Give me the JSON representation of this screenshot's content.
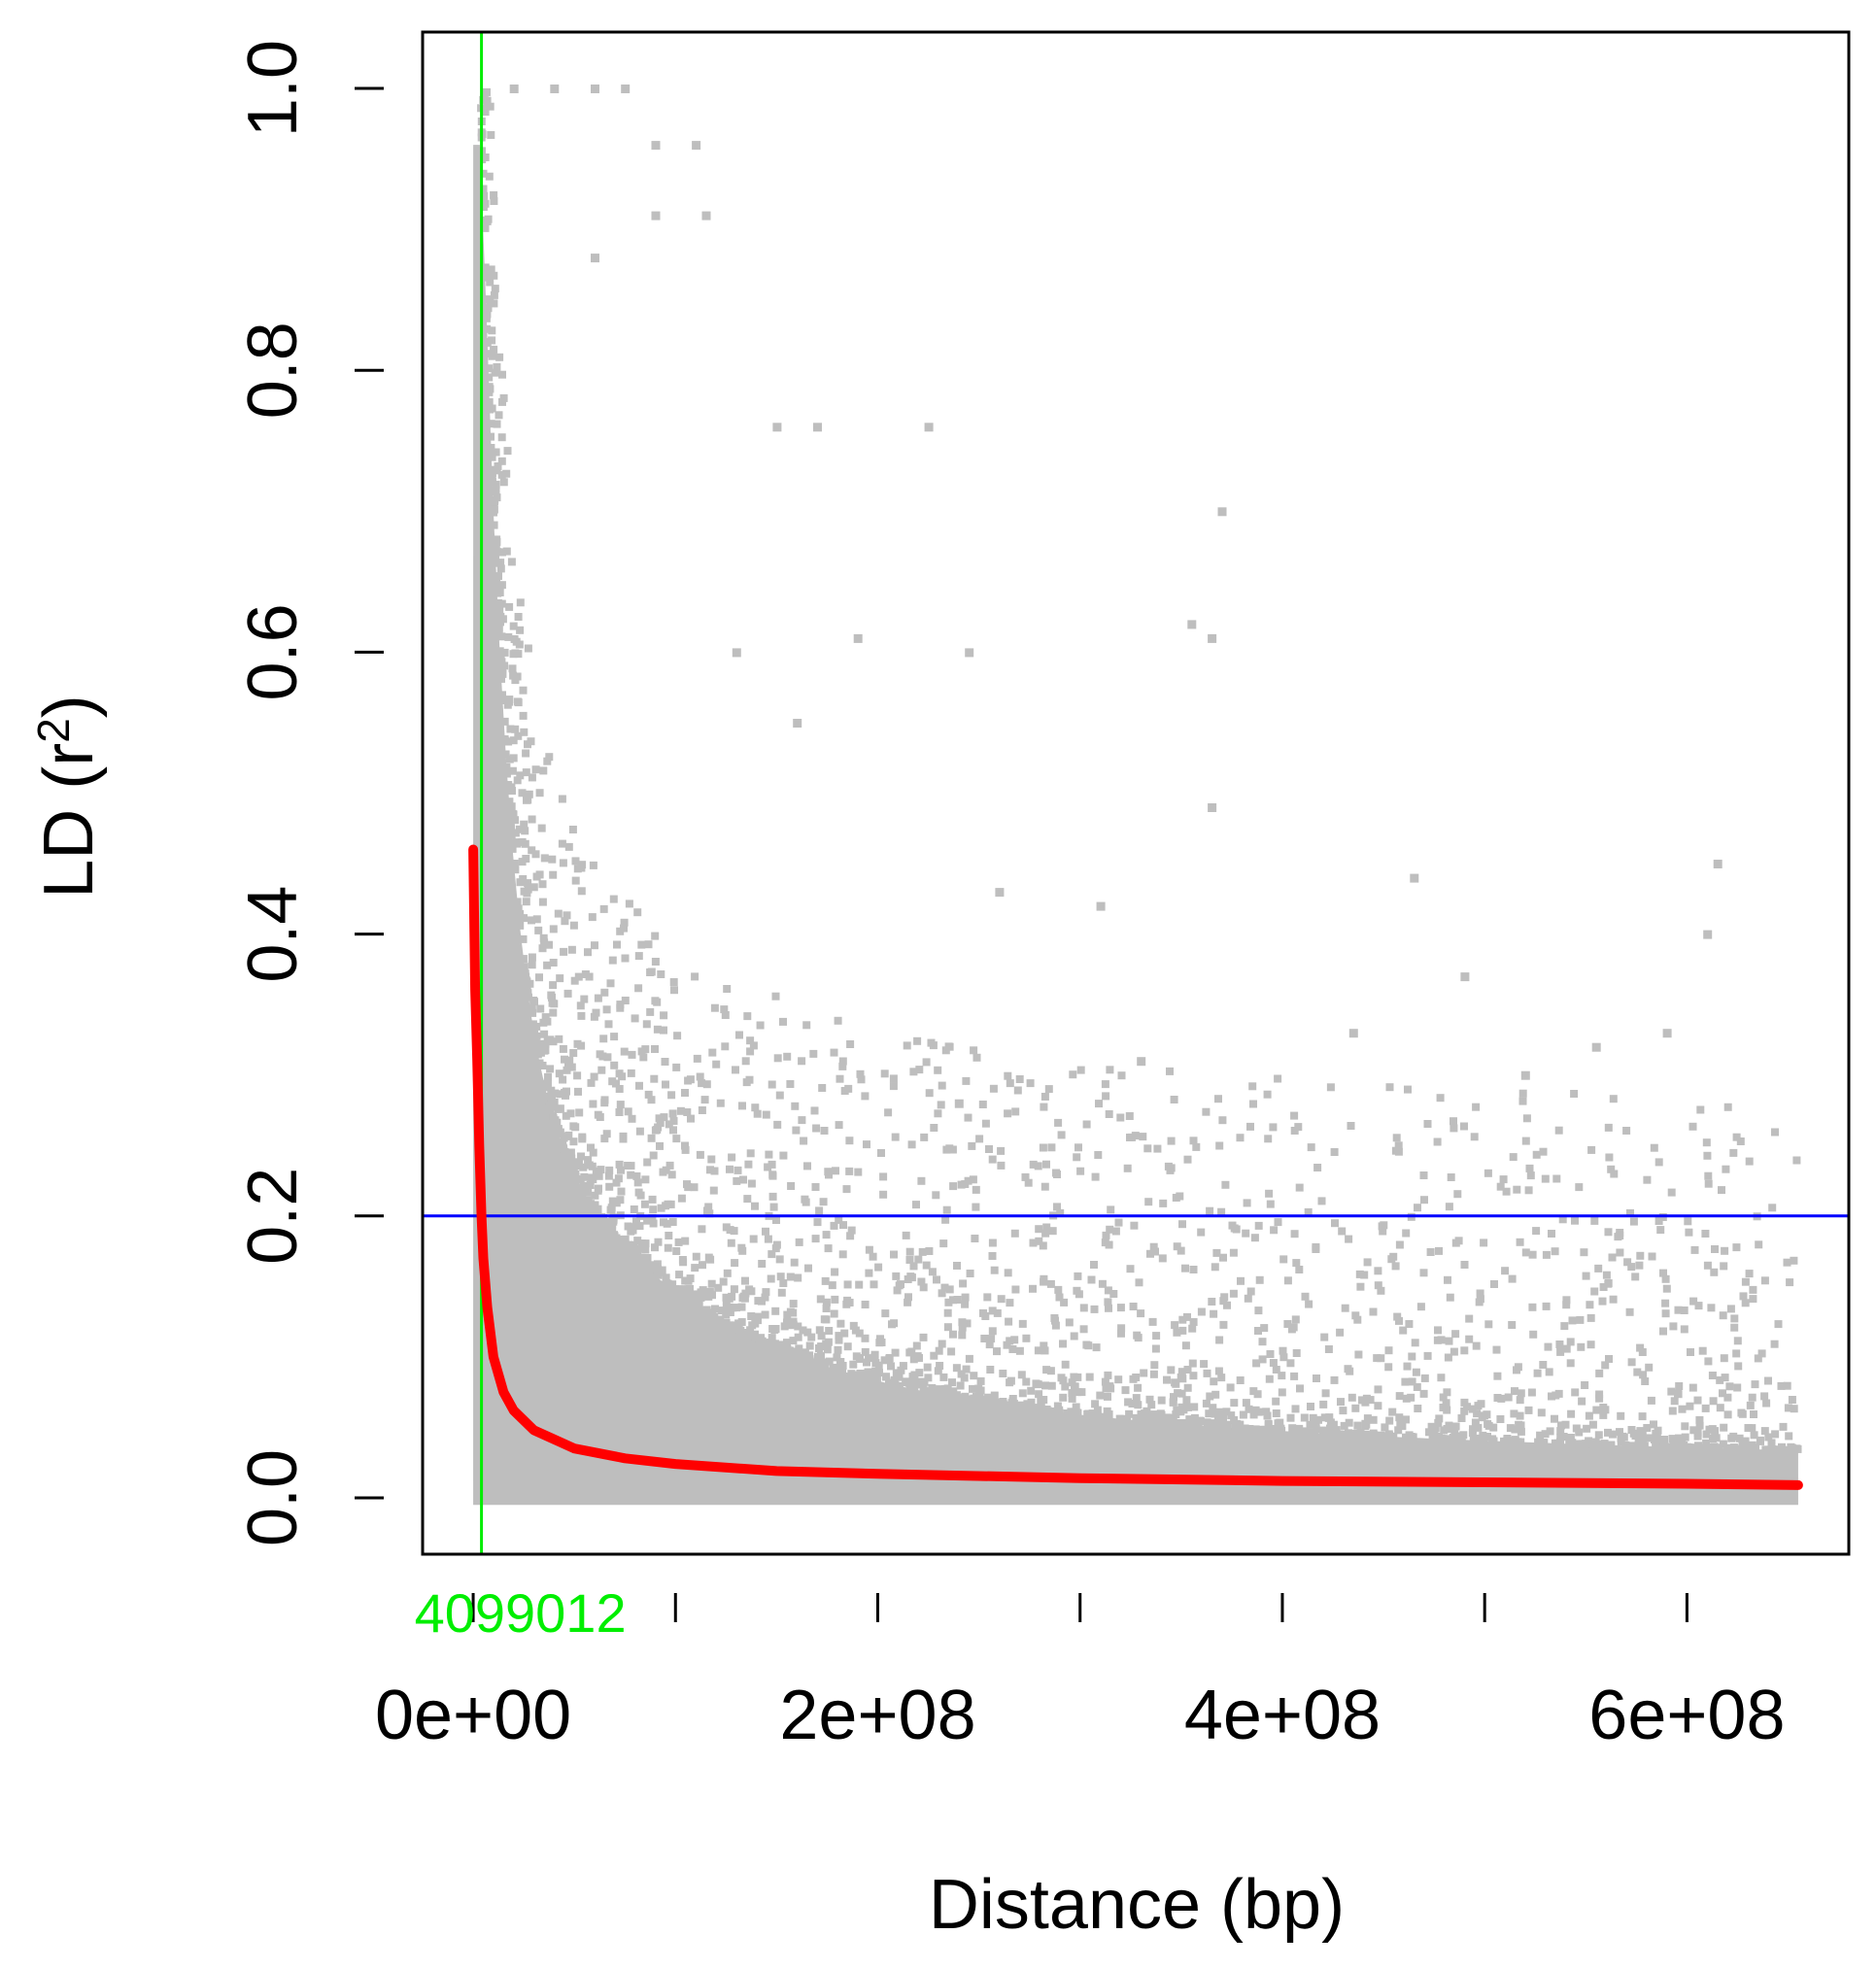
{
  "chart_data": {
    "type": "scatter",
    "title": "",
    "xlabel": "Distance (bp)",
    "ylabel_main": "LD (r",
    "ylabel_sup": "2",
    "ylabel_close": ")",
    "xlim": [
      -25000000,
      680000000
    ],
    "ylim": [
      -0.04,
      1.04
    ],
    "x_ticks": [
      0,
      100000000,
      200000000,
      300000000,
      400000000,
      500000000,
      600000000
    ],
    "x_tick_labels": [
      {
        "value": 0,
        "label": "0e+00"
      },
      {
        "value": 200000000,
        "label": "2e+08"
      },
      {
        "value": 400000000,
        "label": "4e+08"
      },
      {
        "value": 600000000,
        "label": "6e+08"
      }
    ],
    "y_ticks": [
      {
        "value": 0.0,
        "label": "0.0"
      },
      {
        "value": 0.2,
        "label": "0.2"
      },
      {
        "value": 0.4,
        "label": "0.4"
      },
      {
        "value": 0.6,
        "label": "0.6"
      },
      {
        "value": 0.8,
        "label": "0.8"
      },
      {
        "value": 1.0,
        "label": "1.0"
      }
    ],
    "grid": false,
    "legend": "none",
    "colors": {
      "points": "#bebebe",
      "curve": "#ff0000",
      "threshold": "#0000ff",
      "decay_marker": "#00ee00"
    },
    "threshold_line": {
      "y": 0.2
    },
    "decay_marker": {
      "x": 4099012,
      "label": "4099012"
    },
    "decay_curve": {
      "x": [
        0,
        1000000,
        2000000,
        3000000,
        4099012,
        5000000,
        7000000,
        10000000,
        15000000,
        20000000,
        30000000,
        50000000,
        75000000,
        100000000,
        150000000,
        200000000,
        300000000,
        400000000,
        500000000,
        600000000,
        655000000
      ],
      "y": [
        0.46,
        0.36,
        0.31,
        0.25,
        0.2,
        0.17,
        0.135,
        0.1,
        0.075,
        0.062,
        0.048,
        0.035,
        0.028,
        0.024,
        0.019,
        0.017,
        0.014,
        0.012,
        0.011,
        0.01,
        0.009
      ]
    },
    "points_summary": "dense cloud of pairwise r2 values from 0 to 1 over 0 to 6.55e+08 bp, concentrated below 0.2 and near zero distance",
    "sample_points": [
      {
        "x": 20000000,
        "y": 1.0
      },
      {
        "x": 40000000,
        "y": 1.0
      },
      {
        "x": 60000000,
        "y": 1.0
      },
      {
        "x": 75000000,
        "y": 1.0
      },
      {
        "x": 90000000,
        "y": 0.96
      },
      {
        "x": 110000000,
        "y": 0.96
      },
      {
        "x": 90000000,
        "y": 0.91
      },
      {
        "x": 115000000,
        "y": 0.91
      },
      {
        "x": 60000000,
        "y": 0.88
      },
      {
        "x": 150000000,
        "y": 0.76
      },
      {
        "x": 170000000,
        "y": 0.76
      },
      {
        "x": 225000000,
        "y": 0.76
      },
      {
        "x": 370000000,
        "y": 0.7
      },
      {
        "x": 355000000,
        "y": 0.62
      },
      {
        "x": 365000000,
        "y": 0.61
      },
      {
        "x": 245000000,
        "y": 0.6
      },
      {
        "x": 190000000,
        "y": 0.61
      },
      {
        "x": 130000000,
        "y": 0.6
      },
      {
        "x": 160000000,
        "y": 0.55
      },
      {
        "x": 365000000,
        "y": 0.49
      },
      {
        "x": 615000000,
        "y": 0.45
      },
      {
        "x": 465000000,
        "y": 0.44
      },
      {
        "x": 310000000,
        "y": 0.42
      },
      {
        "x": 260000000,
        "y": 0.43
      },
      {
        "x": 610000000,
        "y": 0.4
      },
      {
        "x": 490000000,
        "y": 0.37
      },
      {
        "x": 435000000,
        "y": 0.33
      },
      {
        "x": 555000000,
        "y": 0.32
      },
      {
        "x": 590000000,
        "y": 0.33
      },
      {
        "x": 330000000,
        "y": 0.31
      },
      {
        "x": 520000000,
        "y": 0.3
      },
      {
        "x": 240000000,
        "y": 0.28
      }
    ]
  }
}
